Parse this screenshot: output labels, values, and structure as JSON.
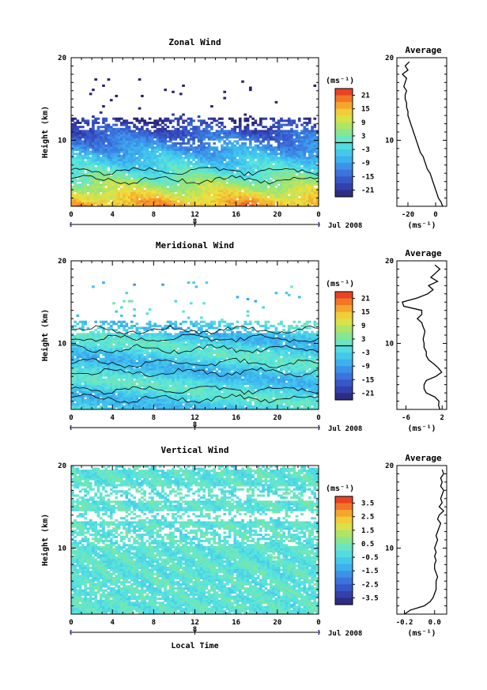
{
  "chart_data": [
    {
      "type": "heatmap",
      "title": "Zonal Wind",
      "ylabel": "Height (km)",
      "xlabel": "",
      "x_ticks": [
        "0",
        "4",
        "8",
        "12",
        "16",
        "20",
        "0"
      ],
      "y_ticks": [
        "10",
        "20"
      ],
      "xlim": [
        0,
        24
      ],
      "ylim": [
        2,
        20
      ],
      "date_marker": "8",
      "date_label": "Jul 2008",
      "colorbar": {
        "unit": "(ms⁻¹)",
        "ticks": [
          "21",
          "15",
          "9",
          "3",
          "-3",
          "-9",
          "-15",
          "-21"
        ],
        "values": [
          21,
          15,
          9,
          3,
          -3,
          -9,
          -15,
          -21
        ],
        "range": [
          -24,
          24
        ],
        "zero_line": 0
      },
      "data_extent": {
        "lower_km": 2,
        "upper_km": 12,
        "sparse_until_km": 17.5
      },
      "zero_contour_heights_km": [
        5.2,
        6.3
      ],
      "profile": {
        "title": "Average",
        "xlabel": "(ms⁻¹)",
        "x_ticks": [
          "-20",
          "0"
        ],
        "x_tick_values": [
          -20,
          0
        ],
        "xlim": [
          -28,
          8
        ],
        "y_ticks": [
          "10",
          "20"
        ],
        "ylim": [
          2,
          20
        ],
        "heights": [
          2,
          2.5,
          3,
          3.5,
          4,
          4.5,
          5,
          5.5,
          6,
          6.5,
          7,
          7.5,
          8,
          8.5,
          9,
          9.5,
          10,
          10.5,
          11,
          11.5,
          12,
          12.5,
          13,
          13.5,
          14,
          14.5,
          15,
          15.5,
          16,
          16.5,
          17,
          17.5,
          18,
          18.5,
          19,
          19.5
        ],
        "values": [
          5,
          4,
          2,
          1,
          0,
          -1,
          -2,
          -3,
          -4,
          -6,
          -7,
          -8,
          -9,
          -11,
          -12,
          -13,
          -14,
          -15,
          -16,
          -17,
          -18,
          -19,
          -20,
          -20,
          -21,
          -21,
          -22,
          -22,
          -21,
          -23,
          -22,
          -21,
          -24,
          -20,
          -22,
          -19
        ]
      }
    },
    {
      "type": "heatmap",
      "title": "Meridional Wind",
      "ylabel": "Height (km)",
      "xlabel": "",
      "x_ticks": [
        "0",
        "4",
        "8",
        "12",
        "16",
        "20",
        "0"
      ],
      "y_ticks": [
        "10",
        "20"
      ],
      "xlim": [
        0,
        24
      ],
      "ylim": [
        2,
        20
      ],
      "date_marker": "8",
      "date_label": "Jul 2008",
      "colorbar": {
        "unit": "(ms⁻¹)",
        "ticks": [
          "21",
          "15",
          "9",
          "3",
          "-3",
          "-9",
          "-15",
          "-21"
        ],
        "values": [
          21,
          15,
          9,
          3,
          -3,
          -9,
          -15,
          -21
        ],
        "range": [
          -24,
          24
        ],
        "zero_line": 0
      },
      "data_extent": {
        "lower_km": 2,
        "upper_km": 12,
        "sparse_until_km": 17.5
      },
      "zero_contour_heights_km": [
        3.3,
        4.4,
        6.5,
        7.6,
        9.3,
        10.6,
        11.6
      ],
      "profile": {
        "title": "Average",
        "xlabel": "(ms⁻¹)",
        "x_ticks": [
          "-6",
          "2"
        ],
        "x_tick_values": [
          -6,
          2
        ],
        "xlim": [
          -8,
          3
        ],
        "y_ticks": [
          "10",
          "20"
        ],
        "ylim": [
          2,
          20
        ],
        "heights": [
          2,
          2.5,
          3,
          3.5,
          4,
          4.5,
          5,
          5.5,
          6,
          6.5,
          7,
          7.5,
          8,
          8.5,
          9,
          9.5,
          10,
          10.5,
          11,
          11.5,
          12,
          12.5,
          13,
          13.5,
          14,
          14.5,
          15,
          15.5,
          16,
          16.5,
          17,
          17.5,
          18,
          18.5,
          19,
          19.5
        ],
        "values": [
          1.5,
          1.2,
          1.3,
          0.4,
          -1.5,
          -2,
          -2,
          -1.5,
          0.6,
          1.9,
          1.2,
          0.2,
          -1,
          -1.5,
          -1.5,
          -2,
          -2,
          -2.2,
          -2,
          -1.8,
          -2.2,
          -2.5,
          -3.5,
          -2.5,
          -2.5,
          -6.5,
          -6.8,
          -3.5,
          -1.2,
          0,
          -1,
          1,
          -0.5,
          0.5,
          1.5,
          0.4
        ]
      }
    },
    {
      "type": "heatmap",
      "title": "Vertical Wind",
      "ylabel": "Height (km)",
      "xlabel": "Local Time",
      "x_ticks": [
        "0",
        "4",
        "8",
        "12",
        "16",
        "20",
        "0"
      ],
      "y_ticks": [
        "10",
        "20"
      ],
      "xlim": [
        0,
        24
      ],
      "ylim": [
        2,
        20
      ],
      "date_marker": "8",
      "date_label": "Jul 2008",
      "colorbar": {
        "unit": "(ms⁻¹)",
        "ticks": [
          "3.5",
          "2.5",
          "1.5",
          "0.5",
          "-0.5",
          "-1.5",
          "-2.5",
          "-3.5"
        ],
        "values": [
          3.5,
          2.5,
          1.5,
          0.5,
          -0.5,
          -1.5,
          -2.5,
          -3.5
        ],
        "range": [
          -4,
          4
        ],
        "zero_line": 0
      },
      "data_extent": {
        "lower_km": 2,
        "upper_km": 20,
        "sparse_until_km": 20
      },
      "zero_contour_heights_km": [],
      "profile": {
        "title": "Average",
        "xlabel": "(ms⁻¹)",
        "x_ticks": [
          "-0.2",
          "0.0"
        ],
        "x_tick_values": [
          -0.2,
          0.0
        ],
        "xlim": [
          -0.25,
          0.08
        ],
        "y_ticks": [
          "10",
          "20"
        ],
        "ylim": [
          2,
          20
        ],
        "heights": [
          2,
          2.5,
          3,
          3.5,
          4,
          4.5,
          5,
          5.5,
          6,
          6.5,
          7,
          7.5,
          8,
          8.5,
          9,
          9.5,
          10,
          10.5,
          11,
          11.5,
          12,
          12.5,
          13,
          13.5,
          14,
          14.5,
          15,
          15.5,
          16,
          16.5,
          17,
          17.5,
          18,
          18.5,
          19,
          19.5
        ],
        "values": [
          -0.2,
          -0.16,
          -0.07,
          -0.03,
          -0.01,
          0,
          0.01,
          0.01,
          0.01,
          0.02,
          0.01,
          0.0,
          0.0,
          0.01,
          0.0,
          0.01,
          0.0,
          0.01,
          0.02,
          0.01,
          0.02,
          0.03,
          0.04,
          0.02,
          0.03,
          0.06,
          0.03,
          0.05,
          0.04,
          0.05,
          0.06,
          0.04,
          0.05,
          0.04,
          0.06,
          0.05
        ]
      }
    }
  ]
}
